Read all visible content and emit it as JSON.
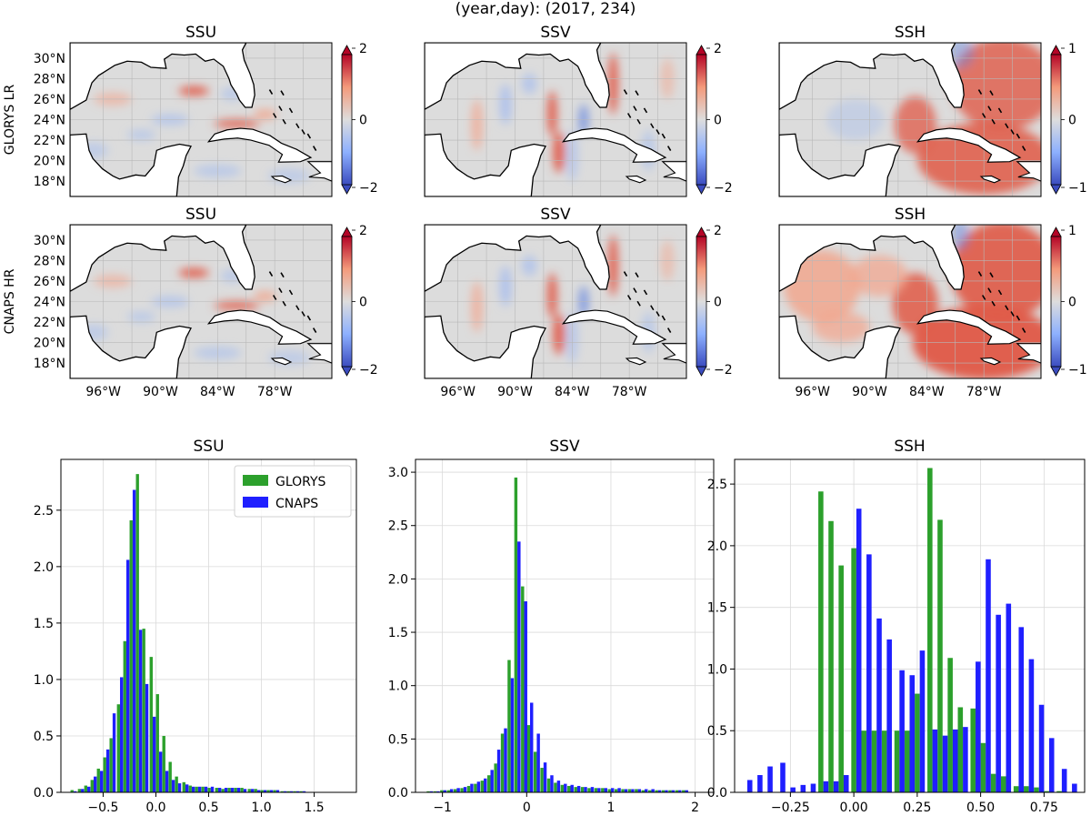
{
  "suptitle": "(year,day): (2017, 234)",
  "map_panel": {
    "columns": [
      "SSU",
      "SSV",
      "SSH"
    ],
    "rows": [
      "GLORYS LR",
      "CNAPS HR"
    ],
    "lat_ticks": [
      "30°N",
      "28°N",
      "26°N",
      "24°N",
      "22°N",
      "20°N",
      "18°N"
    ],
    "lon_ticks": [
      "96°W",
      "90°W",
      "84°W",
      "78°W"
    ],
    "colorbars": [
      {
        "max": "2",
        "mid": "0",
        "min": "−2"
      },
      {
        "max": "2",
        "mid": "0",
        "min": "−2"
      },
      {
        "max": "1",
        "mid": "0",
        "min": "−1"
      }
    ],
    "colormap": {
      "low": "#3b4cc0",
      "mid": "#dddddd",
      "high": "#b40426"
    },
    "land_color": "#ffffff",
    "ocean_color": "#dcdcdc"
  },
  "colors": {
    "GLORYS": "#2ca02c",
    "CNAPS": "#1f1fff"
  },
  "chart_data": [
    {
      "type": "bar",
      "title": "SSU",
      "xlabel": "",
      "ylabel": "",
      "xlim": [
        -0.9,
        1.9
      ],
      "ylim": [
        0,
        2.95
      ],
      "xticks": [
        -0.5,
        0.0,
        0.5,
        1.0,
        1.5
      ],
      "xticklabels": [
        "−0.5",
        "0.0",
        "0.5",
        "1.0",
        "1.5"
      ],
      "yticks": [
        0.0,
        0.5,
        1.0,
        1.5,
        2.0,
        2.5
      ],
      "yticklabels": [
        "0.0",
        "0.5",
        "1.0",
        "1.5",
        "2.0",
        "2.5"
      ],
      "legend": "top-right",
      "bin_width": 0.062,
      "bins": [
        -0.78,
        -0.71,
        -0.65,
        -0.59,
        -0.53,
        -0.47,
        -0.41,
        -0.34,
        -0.28,
        -0.22,
        -0.16,
        -0.1,
        -0.03,
        0.03,
        0.09,
        0.15,
        0.21,
        0.28,
        0.34,
        0.4,
        0.46,
        0.52,
        0.59,
        0.65,
        0.71,
        0.77,
        0.83,
        0.9,
        0.96,
        1.02,
        1.08,
        1.14,
        1.21,
        1.27,
        1.33,
        1.39
      ],
      "series": [
        {
          "name": "GLORYS",
          "values": [
            0.02,
            0.03,
            0.06,
            0.11,
            0.21,
            0.31,
            0.48,
            0.78,
            1.34,
            2.41,
            2.82,
            1.45,
            1.2,
            0.87,
            0.5,
            0.27,
            0.14,
            0.09,
            0.06,
            0.05,
            0.05,
            0.04,
            0.04,
            0.03,
            0.04,
            0.04,
            0.04,
            0.03,
            0.03,
            0.02,
            0.02,
            0.02,
            0.01,
            0.01,
            0.01,
            0.01
          ]
        },
        {
          "name": "CNAPS",
          "values": [
            0.01,
            0.03,
            0.05,
            0.14,
            0.19,
            0.38,
            0.7,
            1.02,
            2.06,
            2.68,
            1.44,
            0.96,
            0.67,
            0.36,
            0.19,
            0.11,
            0.08,
            0.07,
            0.05,
            0.05,
            0.05,
            0.05,
            0.04,
            0.04,
            0.04,
            0.04,
            0.03,
            0.03,
            0.02,
            0.02,
            0.02,
            0.02,
            0.01,
            0.01,
            0.01,
            0.01
          ]
        }
      ]
    },
    {
      "type": "bar",
      "title": "SSV",
      "xlabel": "",
      "ylabel": "",
      "xlim": [
        -1.32,
        2.22
      ],
      "ylim": [
        0,
        3.12
      ],
      "xticks": [
        -1,
        0,
        1,
        2
      ],
      "xticklabels": [
        "−1",
        "0",
        "1",
        "2"
      ],
      "yticks": [
        0.0,
        0.5,
        1.0,
        1.5,
        2.0,
        2.5,
        3.0
      ],
      "yticklabels": [
        "0.0",
        "0.5",
        "1.0",
        "1.5",
        "2.0",
        "2.5",
        "3.0"
      ],
      "bin_width": 0.079,
      "bins": [
        -1.15,
        -1.07,
        -0.99,
        -0.91,
        -0.83,
        -0.75,
        -0.67,
        -0.59,
        -0.51,
        -0.43,
        -0.35,
        -0.27,
        -0.19,
        -0.11,
        -0.03,
        0.04,
        0.12,
        0.2,
        0.28,
        0.36,
        0.44,
        0.52,
        0.6,
        0.68,
        0.76,
        0.84,
        0.92,
        1.0,
        1.08,
        1.16,
        1.24,
        1.32,
        1.4,
        1.48,
        1.56,
        1.64,
        1.72,
        1.8,
        1.88
      ],
      "series": [
        {
          "name": "GLORYS",
          "values": [
            0.01,
            0.01,
            0.02,
            0.02,
            0.03,
            0.04,
            0.06,
            0.08,
            0.11,
            0.16,
            0.27,
            0.55,
            1.24,
            2.95,
            1.93,
            0.63,
            0.38,
            0.23,
            0.13,
            0.09,
            0.07,
            0.06,
            0.05,
            0.05,
            0.04,
            0.04,
            0.04,
            0.03,
            0.03,
            0.03,
            0.03,
            0.03,
            0.02,
            0.02,
            0.02,
            0.02,
            0.02,
            0.02,
            0.02
          ]
        },
        {
          "name": "CNAPS",
          "values": [
            0.01,
            0.01,
            0.02,
            0.03,
            0.04,
            0.05,
            0.08,
            0.1,
            0.13,
            0.21,
            0.4,
            0.6,
            1.07,
            2.35,
            1.79,
            0.84,
            0.55,
            0.28,
            0.16,
            0.11,
            0.08,
            0.07,
            0.06,
            0.05,
            0.05,
            0.04,
            0.04,
            0.04,
            0.04,
            0.03,
            0.03,
            0.03,
            0.03,
            0.03,
            0.02,
            0.02,
            0.02,
            0.02,
            0.02
          ]
        }
      ]
    },
    {
      "type": "bar",
      "title": "SSH",
      "xlabel": "",
      "ylabel": "",
      "xlim": [
        -0.47,
        0.91
      ],
      "ylim": [
        0,
        2.7
      ],
      "xticks": [
        -0.25,
        0.0,
        0.25,
        0.5,
        0.75
      ],
      "xticklabels": [
        "−0.25",
        "0.00",
        "0.25",
        "0.50",
        "0.75"
      ],
      "yticks": [
        0.0,
        0.5,
        1.0,
        1.5,
        2.0,
        2.5
      ],
      "yticklabels": [
        "0.0",
        "0.5",
        "1.0",
        "1.5",
        "2.0",
        "2.5"
      ],
      "bin_width": 0.0425,
      "bins": [
        -0.42,
        -0.38,
        -0.34,
        -0.29,
        -0.25,
        -0.21,
        -0.17,
        -0.12,
        -0.08,
        -0.04,
        0.01,
        0.05,
        0.09,
        0.13,
        0.18,
        0.22,
        0.26,
        0.31,
        0.35,
        0.39,
        0.43,
        0.48,
        0.52,
        0.56,
        0.6,
        0.65,
        0.69,
        0.73,
        0.77,
        0.82,
        0.86
      ],
      "series": [
        {
          "name": "GLORYS",
          "values": [
            0.0,
            0.0,
            0.0,
            0.0,
            0.0,
            0.0,
            0.0,
            2.44,
            2.2,
            1.84,
            1.98,
            0.5,
            0.5,
            0.5,
            0.5,
            0.5,
            0.8,
            2.63,
            2.21,
            1.09,
            0.69,
            0.68,
            0.4,
            0.15,
            0.13,
            0.05,
            0.05,
            0.04,
            0.01,
            0.01,
            0.0
          ]
        },
        {
          "name": "CNAPS",
          "values": [
            0.1,
            0.14,
            0.21,
            0.24,
            0.04,
            0.06,
            0.07,
            0.09,
            0.09,
            0.14,
            2.3,
            1.93,
            1.41,
            1.24,
            0.99,
            0.95,
            1.15,
            0.51,
            0.46,
            0.51,
            0.53,
            1.06,
            1.89,
            1.44,
            1.53,
            1.34,
            1.08,
            0.71,
            0.44,
            0.19,
            0.07
          ]
        }
      ]
    }
  ]
}
